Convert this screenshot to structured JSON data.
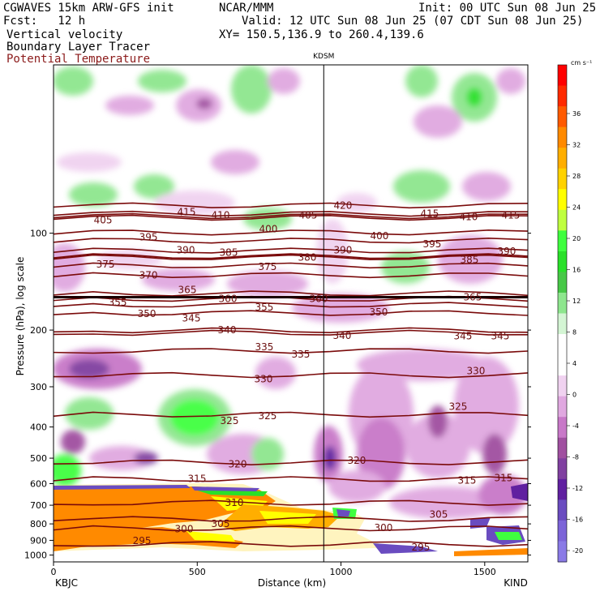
{
  "header": {
    "model": "CGWAVES 15km ARW-GFS init",
    "org": "NCAR/MMM",
    "init": "Init: 00 UTC Sun 08 Jun 25",
    "fcst": "Fcst:   12 h",
    "valid": "Valid: 12 UTC Sun 08 Jun 25 (07 CDT Sun 08 Jun 25)",
    "field1": "Vertical velocity",
    "xy": "XY= 150.5,136.9 to 260.4,139.6",
    "field2": "Boundary Layer Tracer",
    "field3": "Potential Temperature"
  },
  "chart_data": {
    "type": "heatmap",
    "title": "",
    "xlabel": "Distance (km)",
    "ylabel": "Pressure (hPa), log scale",
    "xlim": [
      0,
      1650
    ],
    "ylim": [
      1050,
      30
    ],
    "x_ticks": [
      0,
      500,
      1000,
      1500
    ],
    "y_ticks": [
      100,
      200,
      300,
      400,
      500,
      600,
      700,
      800,
      900,
      1000
    ],
    "station_left": "KBJC",
    "station_right": "KIND",
    "station_marker": {
      "label": "KDSM",
      "x": 940
    },
    "colorbar": {
      "unit": "cm s⁻¹",
      "tick_labels": [
        "36",
        "32",
        "28",
        "24",
        "20",
        "16",
        "12",
        "8",
        "4",
        "0",
        "-4",
        "-8",
        "-12",
        "-16",
        "-20"
      ],
      "colors": [
        "#ff0000",
        "#ff2a00",
        "#ff5a00",
        "#ff8a00",
        "#ffae00",
        "#ffd200",
        "#ffff00",
        "#bfff3f",
        "#3fff3f",
        "#29e029",
        "#47c847",
        "#8ee68e",
        "#d4f5d4",
        "#ffffff",
        "#ffffff",
        "#f0d2f0",
        "#e0a8e0",
        "#c878c8",
        "#a050a0",
        "#8040a0",
        "#6020a0",
        "#6a4cc0",
        "#7c64d8",
        "#8a7ae6"
      ]
    },
    "theta_labels": [
      {
        "t": "415",
        "x": 230,
        "p": 86
      },
      {
        "t": "410",
        "x": 272,
        "p": 88
      },
      {
        "t": "405",
        "x": 380,
        "p": 88
      },
      {
        "t": "420",
        "x": 423,
        "p": 82
      },
      {
        "t": "415",
        "x": 530,
        "p": 87
      },
      {
        "t": "410",
        "x": 578,
        "p": 89
      },
      {
        "t": "415",
        "x": 630,
        "p": 88
      },
      {
        "t": "405",
        "x": 127,
        "p": 91
      },
      {
        "t": "395",
        "x": 183,
        "p": 103
      },
      {
        "t": "400",
        "x": 331,
        "p": 97
      },
      {
        "t": "400",
        "x": 468,
        "p": 102
      },
      {
        "t": "390",
        "x": 229,
        "p": 113
      },
      {
        "t": "385",
        "x": 282,
        "p": 115
      },
      {
        "t": "380",
        "x": 379,
        "p": 119
      },
      {
        "t": "390",
        "x": 423,
        "p": 113
      },
      {
        "t": "395",
        "x": 533,
        "p": 108
      },
      {
        "t": "385",
        "x": 579,
        "p": 121
      },
      {
        "t": "390",
        "x": 625,
        "p": 114
      },
      {
        "t": "375",
        "x": 130,
        "p": 125
      },
      {
        "t": "370",
        "x": 183,
        "p": 135
      },
      {
        "t": "375",
        "x": 330,
        "p": 127
      },
      {
        "t": "365",
        "x": 231,
        "p": 150
      },
      {
        "t": "360",
        "x": 281,
        "p": 160
      },
      {
        "t": "360",
        "x": 393,
        "p": 160
      },
      {
        "t": "365",
        "x": 583,
        "p": 158
      },
      {
        "t": "355",
        "x": 145,
        "p": 164
      },
      {
        "t": "350",
        "x": 181,
        "p": 178
      },
      {
        "t": "345",
        "x": 236,
        "p": 184
      },
      {
        "t": "355",
        "x": 326,
        "p": 170
      },
      {
        "t": "350",
        "x": 467,
        "p": 176
      },
      {
        "t": "340",
        "x": 280,
        "p": 200
      },
      {
        "t": "340",
        "x": 422,
        "p": 208
      },
      {
        "t": "345",
        "x": 571,
        "p": 209
      },
      {
        "t": "345",
        "x": 617,
        "p": 209
      },
      {
        "t": "335",
        "x": 326,
        "p": 226
      },
      {
        "t": "335",
        "x": 371,
        "p": 238
      },
      {
        "t": "330",
        "x": 325,
        "p": 284
      },
      {
        "t": "330",
        "x": 587,
        "p": 268
      },
      {
        "t": "325",
        "x": 283,
        "p": 383
      },
      {
        "t": "325",
        "x": 330,
        "p": 370
      },
      {
        "t": "325",
        "x": 565,
        "p": 346
      },
      {
        "t": "320",
        "x": 293,
        "p": 522
      },
      {
        "t": "320",
        "x": 440,
        "p": 508
      },
      {
        "t": "315",
        "x": 243,
        "p": 580
      },
      {
        "t": "315",
        "x": 576,
        "p": 587
      },
      {
        "t": "315",
        "x": 621,
        "p": 576
      },
      {
        "t": "310",
        "x": 289,
        "p": 688
      },
      {
        "t": "305",
        "x": 272,
        "p": 800
      },
      {
        "t": "305",
        "x": 541,
        "p": 747
      },
      {
        "t": "300",
        "x": 227,
        "p": 829
      },
      {
        "t": "300",
        "x": 473,
        "p": 823
      },
      {
        "t": "295",
        "x": 175,
        "p": 903
      },
      {
        "t": "295",
        "x": 519,
        "p": 945
      }
    ]
  }
}
